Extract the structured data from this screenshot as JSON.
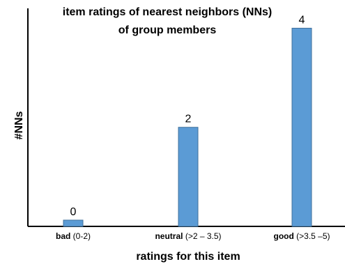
{
  "chart_data": {
    "type": "bar",
    "title_lines": [
      "item ratings of nearest neighbors (NNs)",
      "of group members"
    ],
    "xlabel": "ratings for this item",
    "ylabel": "#NNs",
    "categories": [
      {
        "bold": "bad",
        "rest": " (0-2)"
      },
      {
        "bold": "neutral",
        "rest": "  (>2 – 3.5)"
      },
      {
        "bold": "good",
        "rest": " (>3.5 –5)"
      }
    ],
    "values": [
      0,
      2,
      4
    ],
    "data_labels": [
      "0",
      "2",
      "4"
    ],
    "ylim": [
      0,
      4.4
    ],
    "bar_color": "#5b9bd5",
    "bar_border_color": "#41719c",
    "grid": false,
    "legend": "none"
  }
}
